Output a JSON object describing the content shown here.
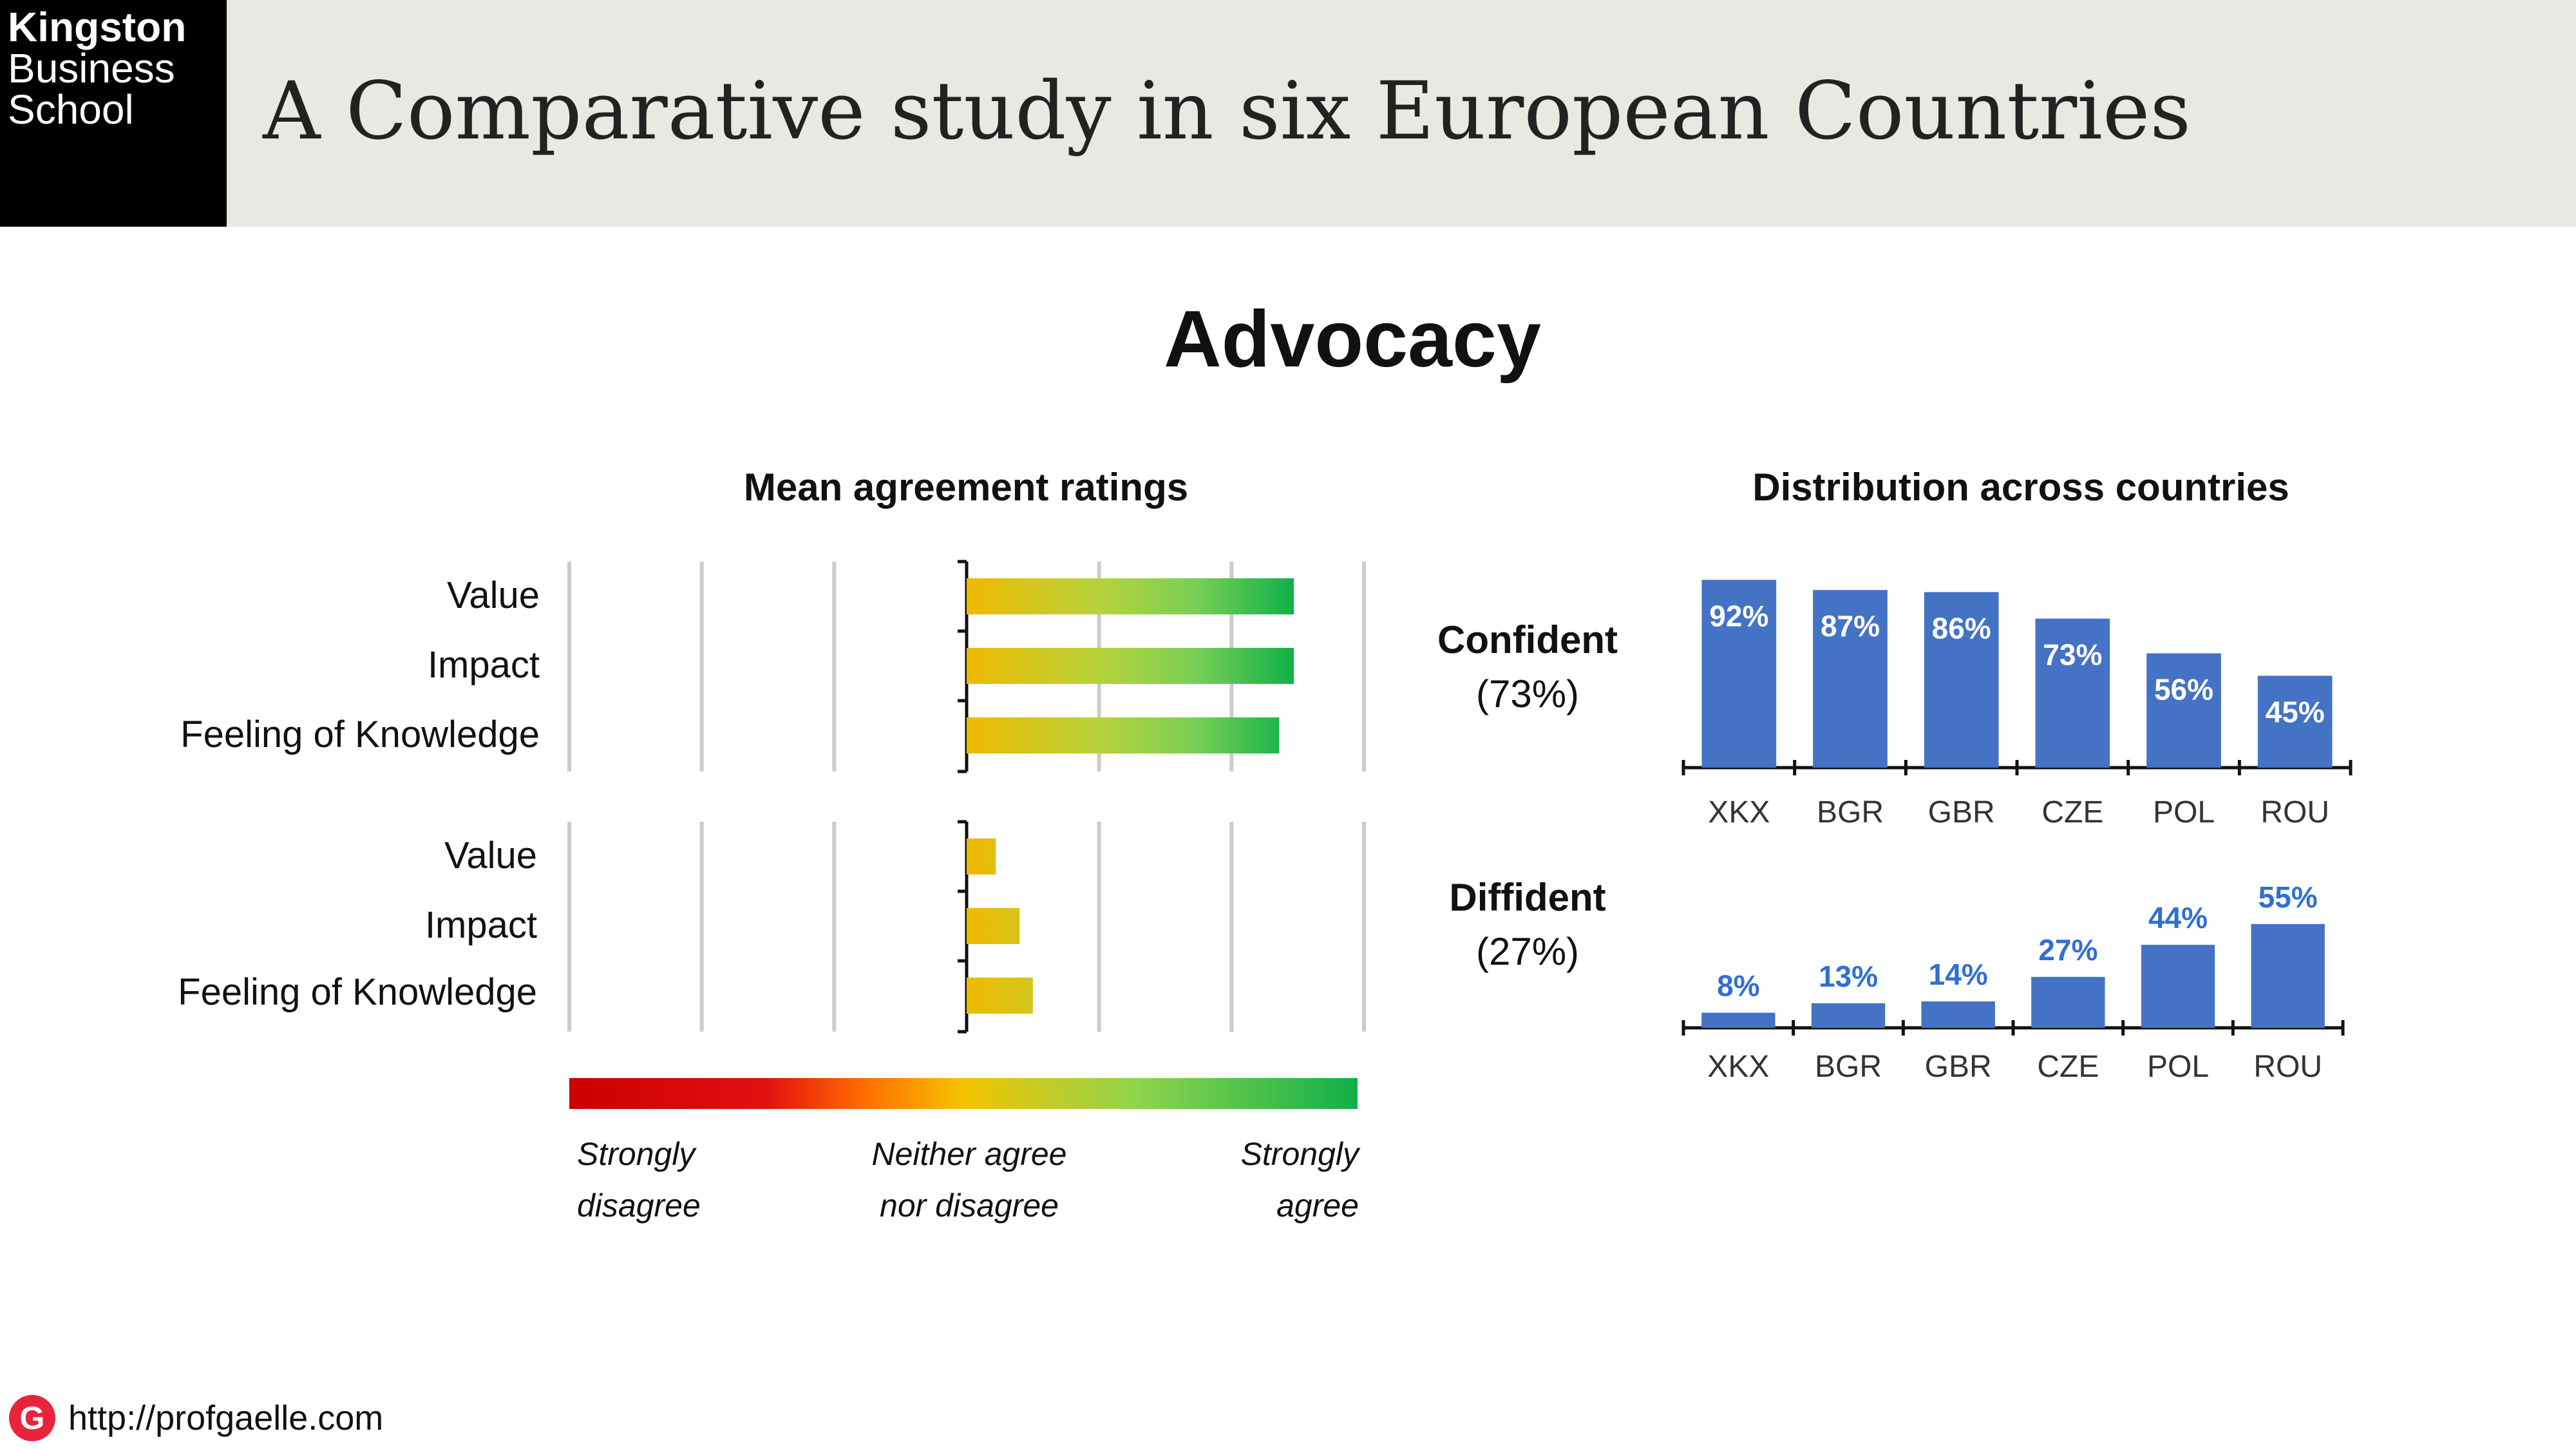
{
  "header": {
    "logo_lines": [
      "Kingston",
      "Business",
      "School"
    ],
    "title": "A Comparative study in six European Countries"
  },
  "section_title": "Advocacy",
  "colors": {
    "bar_blue": "#4472c4",
    "label_blue": "#2f6fd6",
    "grid": "#cccccc",
    "gradient": [
      "#cc0000",
      "#ff6a00",
      "#f5c400",
      "#8fd44c",
      "#12b04a"
    ]
  },
  "chart_data": [
    {
      "type": "bar",
      "orientation": "horizontal",
      "title": "Mean agreement ratings",
      "scale_labels": [
        {
          "line1": "Strongly",
          "line2": "disagree"
        },
        {
          "line1": "Neither agree",
          "line2": "nor disagree"
        },
        {
          "line1": "Strongly",
          "line2": "agree"
        }
      ],
      "xlim": [
        1,
        7
      ],
      "origin": 4,
      "groups": [
        {
          "name": "Confident",
          "categories": [
            "Value",
            "Impact",
            "Feeling of Knowledge"
          ],
          "values": [
            6.47,
            6.47,
            6.36
          ]
        },
        {
          "name": "Diffident",
          "categories": [
            "Value",
            "Impact",
            "Feeling of Knowledge"
          ],
          "values": [
            4.22,
            4.4,
            4.5
          ]
        }
      ]
    },
    {
      "type": "bar",
      "title": "Distribution across countries",
      "categories": [
        "XKX",
        "BGR",
        "GBR",
        "CZE",
        "POL",
        "ROU"
      ],
      "ylim": [
        0,
        100
      ],
      "groups": [
        {
          "name": "Confident",
          "share": "(73%)",
          "values": [
            92,
            87,
            86,
            73,
            56,
            45
          ],
          "labels": [
            "92%",
            "87%",
            "86%",
            "73%",
            "56%",
            "45%"
          ]
        },
        {
          "name": "Diffident",
          "share": "(27%)",
          "values": [
            8,
            13,
            14,
            27,
            44,
            55
          ],
          "labels": [
            "8%",
            "13%",
            "14%",
            "27%",
            "44%",
            "55%"
          ]
        }
      ]
    }
  ],
  "footer": {
    "icon": "G",
    "url": "http://profgaelle.com"
  }
}
